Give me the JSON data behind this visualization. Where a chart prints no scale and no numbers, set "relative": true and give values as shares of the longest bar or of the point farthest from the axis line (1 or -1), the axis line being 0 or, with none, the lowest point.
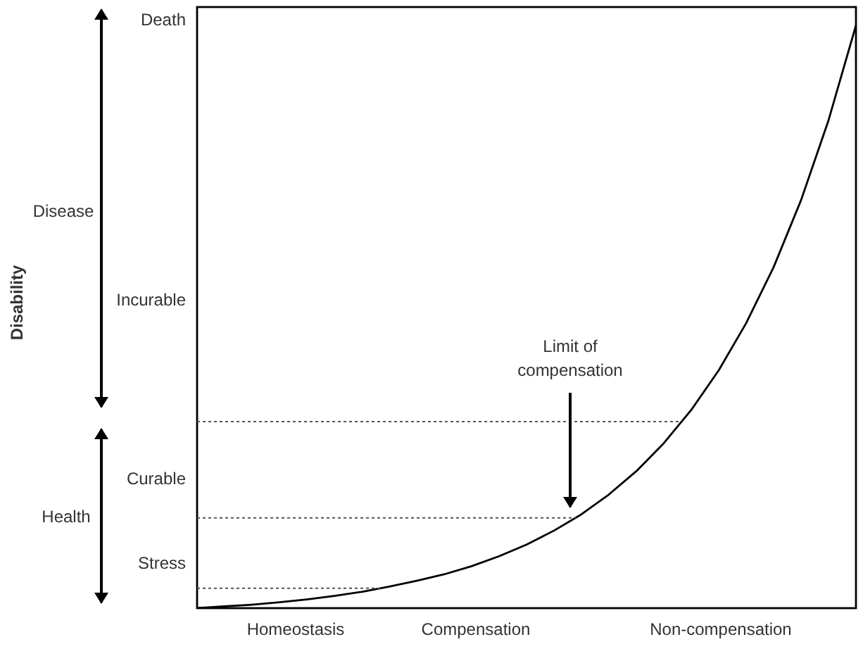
{
  "chart_data": {
    "type": "line",
    "relative": true,
    "categories": [
      null,
      null,
      null,
      null,
      null,
      null,
      null,
      null,
      null,
      null,
      null,
      null,
      null,
      null,
      null,
      null,
      null,
      null,
      null,
      null,
      null,
      null,
      null,
      null,
      null
    ],
    "series": [
      {
        "color": "#000000",
        "values": [
          0,
          0.003,
          0.006,
          0.01,
          0.015,
          0.021,
          0.028,
          0.037,
          0.047,
          0.058,
          0.072,
          0.089,
          0.109,
          0.133,
          0.161,
          0.195,
          0.235,
          0.283,
          0.34,
          0.408,
          0.489,
          0.585,
          0.7,
          0.837,
          1
        ]
      }
    ],
    "ref_lines": [
      {
        "axis": "y",
        "value": 0.034,
        "line_style": "dotted",
        "color": "#555555"
      },
      {
        "axis": "y",
        "value": 0.155,
        "line_style": "dotted",
        "color": "#555555"
      },
      {
        "axis": "y",
        "value": 0.32,
        "line_style": "dotted",
        "color": "#555555"
      }
    ],
    "annotations": [
      "Homeostasis",
      "Compensation",
      "Non-compensation",
      "Death",
      "Incurable",
      "Curable",
      "Stress",
      "Disease",
      "Health",
      "Limit of\ncompensation",
      "Disability"
    ],
    "grid": false,
    "legend": false,
    "marker": "none",
    "line_style": "solid"
  }
}
